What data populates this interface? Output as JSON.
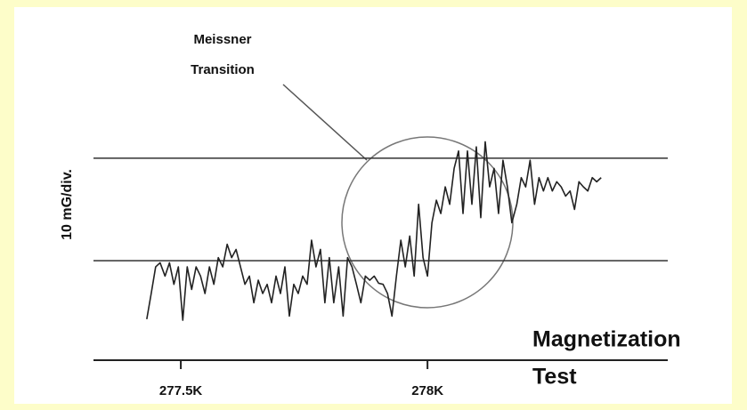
{
  "chart_data": {
    "type": "line",
    "title": [
      "Magnetization",
      "Test"
    ],
    "annotation": [
      "Meissner",
      "Transition"
    ],
    "ylabel": "10 mG/div.",
    "xlim": [
      277.323,
      278.487
    ],
    "xticks": [
      {
        "value": 277.5,
        "label": "277.5K"
      },
      {
        "value": 278,
        "label": "278K"
      }
    ],
    "ylim": [
      -9.7,
      12.5
    ],
    "yticks": [
      0,
      10
    ],
    "grid": true,
    "series": [
      {
        "color": "#222222",
        "x": [
          277.431,
          277.44,
          277.449,
          277.458,
          277.468,
          277.477,
          277.486,
          277.495,
          277.504,
          277.513,
          277.522,
          277.531,
          277.54,
          277.549,
          277.558,
          277.567,
          277.576,
          277.585,
          277.594,
          277.603,
          277.612,
          277.621,
          277.63,
          277.639,
          277.648,
          277.657,
          277.666,
          277.675,
          277.684,
          277.693,
          277.702,
          277.711,
          277.72,
          277.729,
          277.738,
          277.747,
          277.756,
          277.765,
          277.774,
          277.783,
          277.792,
          277.801,
          277.81,
          277.82,
          277.829,
          277.838,
          277.847,
          277.856,
          277.865,
          277.874,
          277.883,
          277.892,
          277.901,
          277.91,
          277.919,
          277.928,
          277.937,
          277.946,
          277.955,
          277.964,
          277.973,
          277.982,
          277.991,
          278.0,
          278.009,
          278.018,
          278.027,
          278.036,
          278.045,
          278.054,
          278.063,
          278.072,
          278.081,
          278.09,
          278.099,
          278.108,
          278.117,
          278.126,
          278.135,
          278.144,
          278.153,
          278.162,
          278.171,
          278.181,
          278.19,
          278.199,
          278.208,
          278.217,
          278.226,
          278.235,
          278.244,
          278.253,
          278.262,
          278.271,
          278.28,
          278.289,
          278.298,
          278.307,
          278.316,
          278.325,
          278.334,
          278.343,
          278.352
        ],
        "values": [
          -5.7,
          -3.2,
          -0.6,
          -0.2,
          -1.5,
          -0.2,
          -2.3,
          -0.6,
          -5.8,
          -0.6,
          -2.8,
          -0.6,
          -1.5,
          -3.2,
          -0.6,
          -2.3,
          0.3,
          -0.6,
          1.6,
          0.3,
          1.1,
          -0.6,
          -2.3,
          -1.5,
          -4.1,
          -1.9,
          -3.2,
          -2.3,
          -4.1,
          -1.5,
          -3.2,
          -0.6,
          -5.4,
          -2.3,
          -3.2,
          -1.5,
          -2.3,
          2.0,
          -0.6,
          1.1,
          -4.1,
          0.3,
          -4.1,
          -0.6,
          -5.4,
          0.3,
          -0.6,
          -2.3,
          -4.1,
          -1.5,
          -1.9,
          -1.5,
          -2.2,
          -2.3,
          -3.2,
          -5.4,
          -1.5,
          2.0,
          -0.6,
          2.4,
          -1.5,
          5.5,
          0.3,
          -1.5,
          3.7,
          5.9,
          4.6,
          7.2,
          5.5,
          9.0,
          10.7,
          4.6,
          10.7,
          5.5,
          11.1,
          4.2,
          11.6,
          7.2,
          9.0,
          4.6,
          9.8,
          7.2,
          3.7,
          5.5,
          8.1,
          7.2,
          9.8,
          5.5,
          8.1,
          6.8,
          8.1,
          6.8,
          7.7,
          7.2,
          6.3,
          6.8,
          5.0,
          7.7,
          7.2,
          6.8,
          8.1,
          7.7,
          8.1
        ]
      }
    ]
  }
}
